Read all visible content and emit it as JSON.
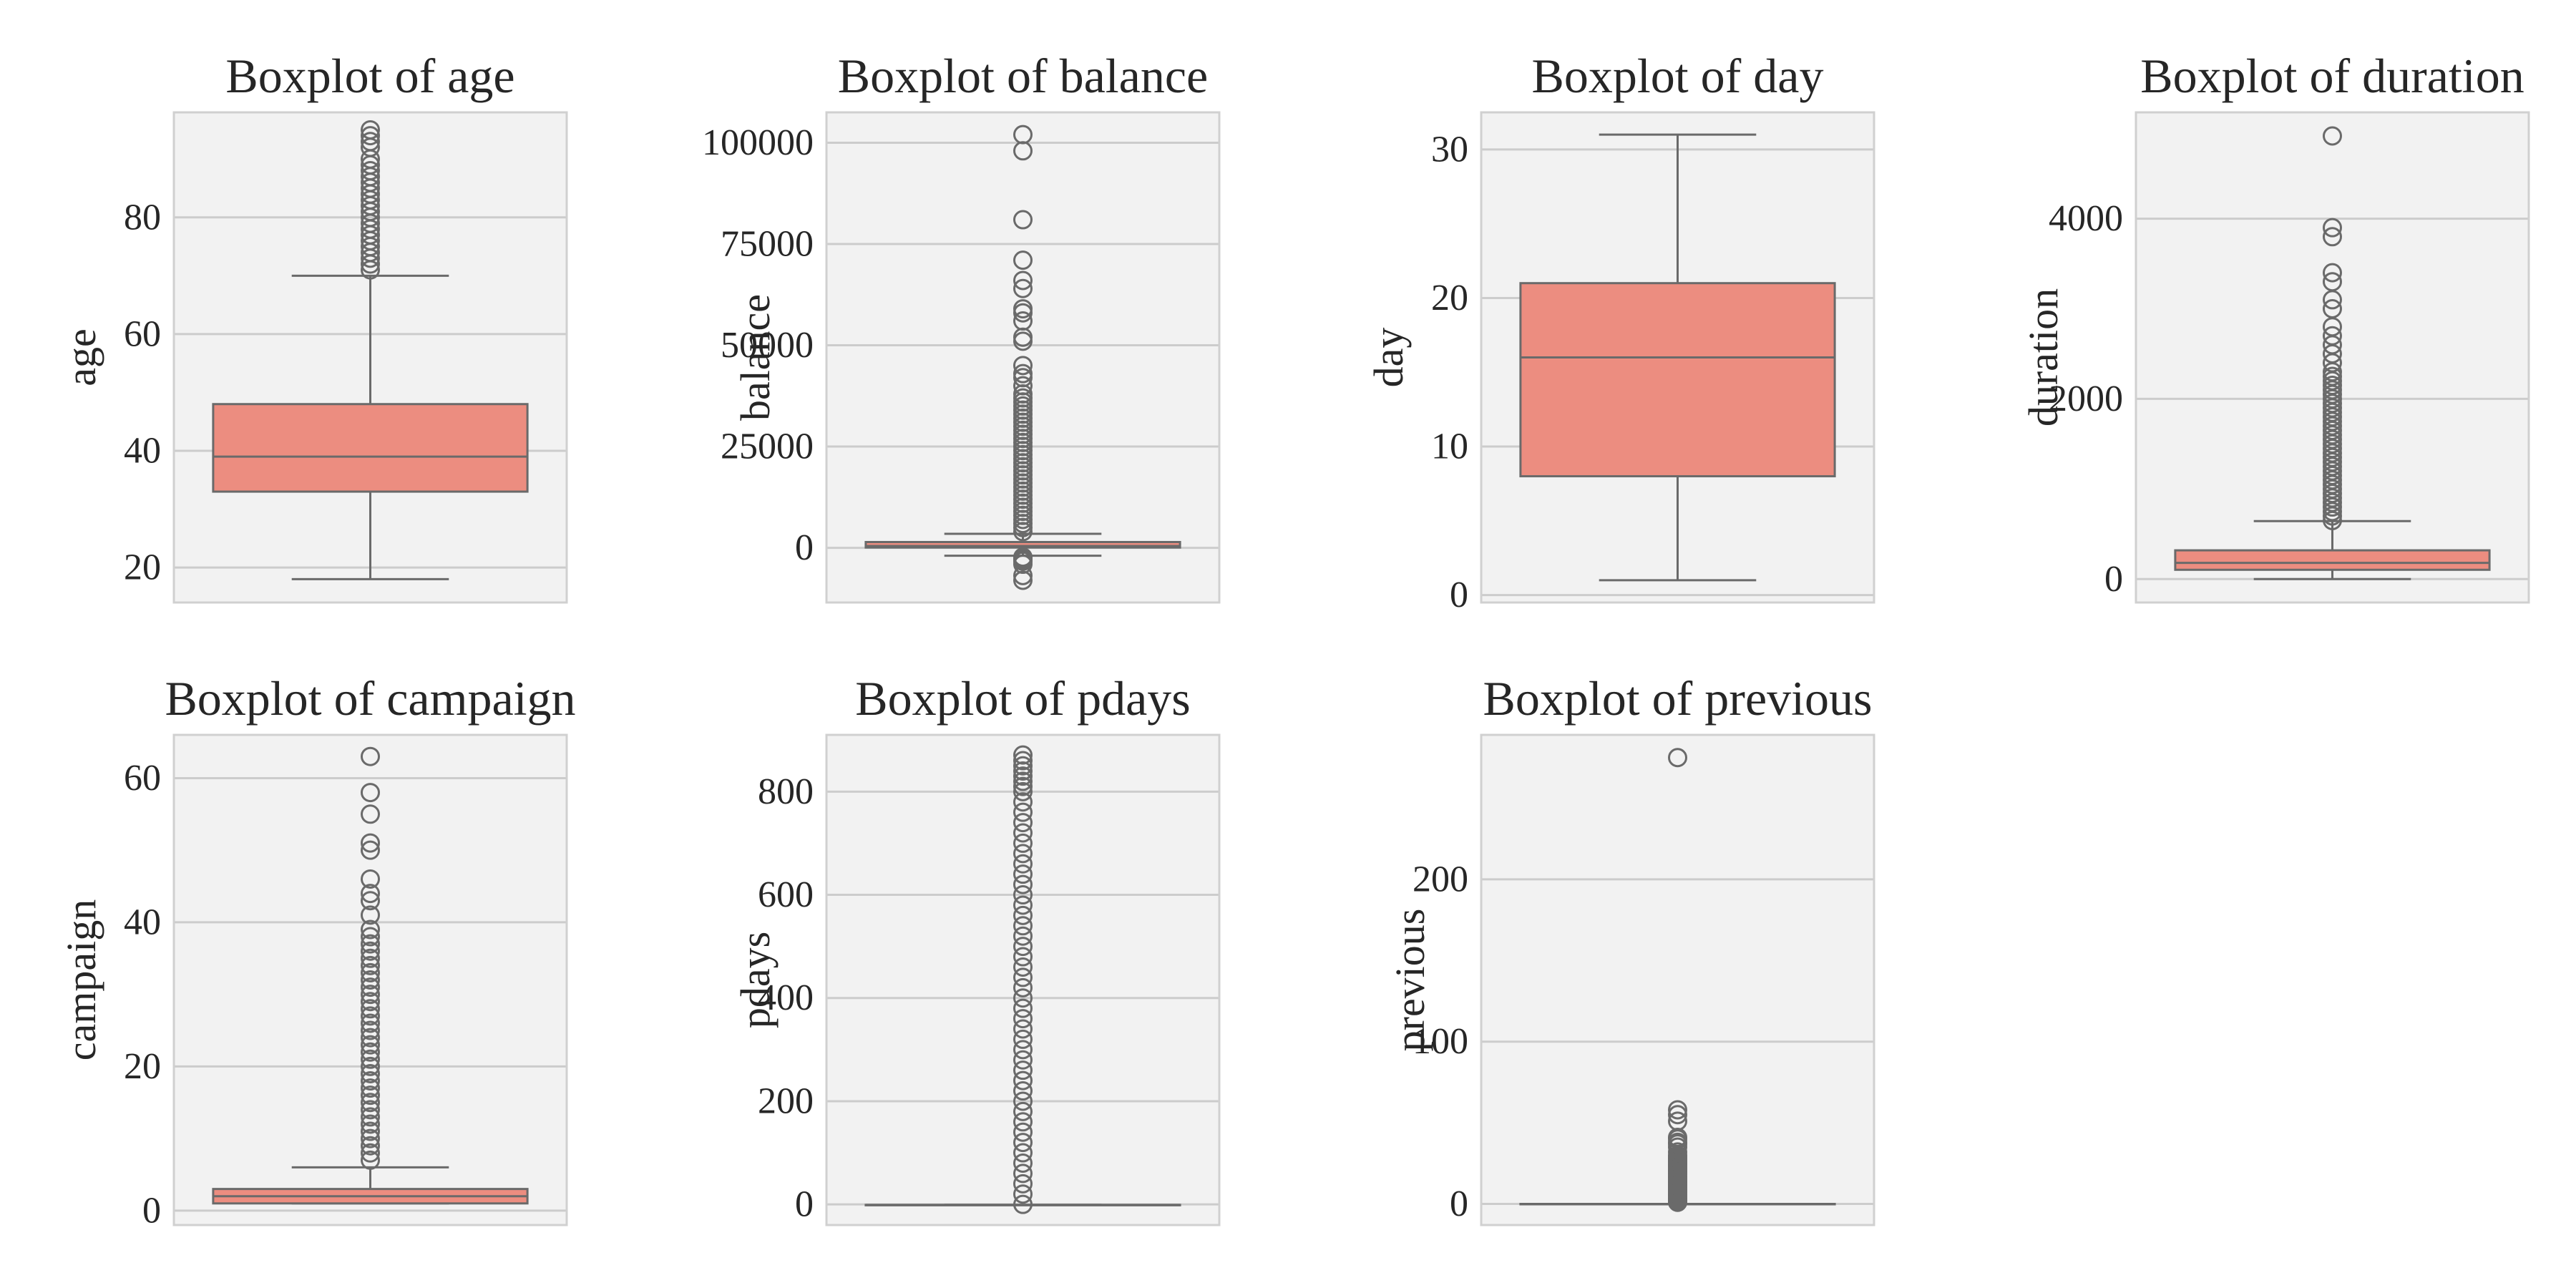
{
  "colors": {
    "plot_bg": "#f2f2f2",
    "grid": "#cccccc",
    "frame": "#d0d0d0",
    "box_fill": "#ec8d80",
    "line": "#6a6a6a"
  },
  "chart_data": [
    {
      "type": "box",
      "variable": "age",
      "title": "Boxplot of age",
      "ylabel": "age",
      "ylim": [
        14,
        98
      ],
      "ticks": [
        20,
        40,
        60,
        80
      ],
      "tick_labels": [
        "20",
        "40",
        "60",
        "80"
      ],
      "whisker_low": 18,
      "q1": 33,
      "median": 39,
      "q3": 48,
      "whisker_high": 70,
      "outliers": [
        71,
        72,
        73,
        74,
        75,
        76,
        77,
        78,
        79,
        80,
        81,
        82,
        83,
        84,
        85,
        86,
        87,
        88,
        89,
        90,
        92,
        93,
        94,
        95
      ]
    },
    {
      "type": "box",
      "variable": "balance",
      "title": "Boxplot of balance",
      "ylabel": "balance",
      "ylim": [
        -13500,
        107500
      ],
      "ticks": [
        0,
        25000,
        50000,
        75000,
        100000
      ],
      "tick_labels": [
        "0",
        "25000",
        "50000",
        "75000",
        "100000"
      ],
      "whisker_low": -1962,
      "q1": 72,
      "median": 448,
      "q3": 1428,
      "whisker_high": 3462,
      "outliers": [
        -8019,
        -6847,
        -4057,
        -3313,
        -3000,
        -2604,
        -2300,
        4000,
        5000,
        6000,
        7000,
        8000,
        9000,
        10000,
        11000,
        12000,
        13000,
        14000,
        15000,
        16000,
        17000,
        18000,
        19000,
        20000,
        21000,
        22000,
        23000,
        24000,
        25000,
        26000,
        27000,
        28000,
        29000,
        30000,
        31000,
        32000,
        33000,
        34000,
        35000,
        36000,
        37000,
        38000,
        40000,
        42000,
        43000,
        45000,
        51000,
        52000,
        56000,
        58000,
        59000,
        64000,
        66000,
        71000,
        81000,
        98000,
        102000
      ]
    },
    {
      "type": "box",
      "variable": "day",
      "title": "Boxplot of day",
      "ylabel": "day",
      "ylim": [
        -0.5,
        32.5
      ],
      "ticks": [
        0,
        10,
        20,
        30
      ],
      "tick_labels": [
        "0",
        "10",
        "20",
        "30"
      ],
      "whisker_low": 1,
      "q1": 8,
      "median": 16,
      "q3": 21,
      "whisker_high": 31,
      "outliers": []
    },
    {
      "type": "box",
      "variable": "duration",
      "title": "Boxplot of duration",
      "ylabel": "duration",
      "ylim": [
        -260,
        5180
      ],
      "ticks": [
        0,
        2000,
        4000
      ],
      "tick_labels": [
        "0",
        "2000",
        "4000"
      ],
      "whisker_low": 0,
      "q1": 103,
      "median": 180,
      "q3": 319,
      "whisker_high": 643,
      "outliers": [
        650,
        700,
        750,
        800,
        850,
        900,
        950,
        1000,
        1050,
        1100,
        1150,
        1200,
        1250,
        1300,
        1350,
        1400,
        1450,
        1500,
        1550,
        1600,
        1650,
        1700,
        1750,
        1800,
        1850,
        1900,
        1950,
        2000,
        2050,
        2100,
        2150,
        2200,
        2250,
        2300,
        2400,
        2500,
        2600,
        2700,
        2800,
        3000,
        3100,
        3300,
        3400,
        3800,
        3900,
        4918
      ]
    },
    {
      "type": "box",
      "variable": "campaign",
      "title": "Boxplot of campaign",
      "ylabel": "campaign",
      "ylim": [
        -2,
        66
      ],
      "ticks": [
        0,
        20,
        40,
        60
      ],
      "tick_labels": [
        "0",
        "20",
        "40",
        "60"
      ],
      "whisker_low": 1,
      "q1": 1,
      "median": 2,
      "q3": 3,
      "whisker_high": 6,
      "outliers": [
        7,
        8,
        9,
        10,
        11,
        12,
        13,
        14,
        15,
        16,
        17,
        18,
        19,
        20,
        21,
        22,
        23,
        24,
        25,
        26,
        27,
        28,
        29,
        30,
        31,
        32,
        33,
        34,
        35,
        36,
        37,
        38,
        39,
        41,
        43,
        44,
        46,
        50,
        51,
        55,
        58,
        63
      ]
    },
    {
      "type": "box",
      "variable": "pdays",
      "title": "Boxplot of pdays",
      "ylabel": "pdays",
      "ylim": [
        -40,
        910
      ],
      "ticks": [
        0,
        200,
        400,
        600,
        800
      ],
      "tick_labels": [
        "0",
        "200",
        "400",
        "600",
        "800"
      ],
      "whisker_low": -1,
      "q1": -1,
      "median": -1,
      "q3": -1,
      "whisker_high": -1,
      "outliers": [
        0,
        20,
        40,
        60,
        80,
        100,
        120,
        140,
        160,
        180,
        200,
        220,
        240,
        260,
        280,
        300,
        320,
        340,
        360,
        380,
        400,
        420,
        440,
        460,
        480,
        500,
        520,
        540,
        560,
        580,
        600,
        620,
        640,
        660,
        680,
        700,
        720,
        740,
        760,
        780,
        800,
        810,
        820,
        830,
        840,
        850,
        860,
        871
      ]
    },
    {
      "type": "box",
      "variable": "previous",
      "title": "Boxplot of previous",
      "ylabel": "previous",
      "ylim": [
        -13,
        289
      ],
      "ticks": [
        0,
        100,
        200
      ],
      "tick_labels": [
        "0",
        "100",
        "200"
      ],
      "whisker_low": 0,
      "q1": 0,
      "median": 0,
      "q3": 0,
      "whisker_high": 0,
      "outliers": [
        1,
        2,
        3,
        4,
        5,
        6,
        7,
        8,
        9,
        10,
        11,
        12,
        13,
        14,
        15,
        16,
        17,
        18,
        19,
        20,
        21,
        22,
        23,
        24,
        25,
        26,
        27,
        28,
        29,
        30,
        32,
        35,
        37,
        38,
        40,
        41,
        51,
        55,
        58,
        275
      ]
    }
  ]
}
